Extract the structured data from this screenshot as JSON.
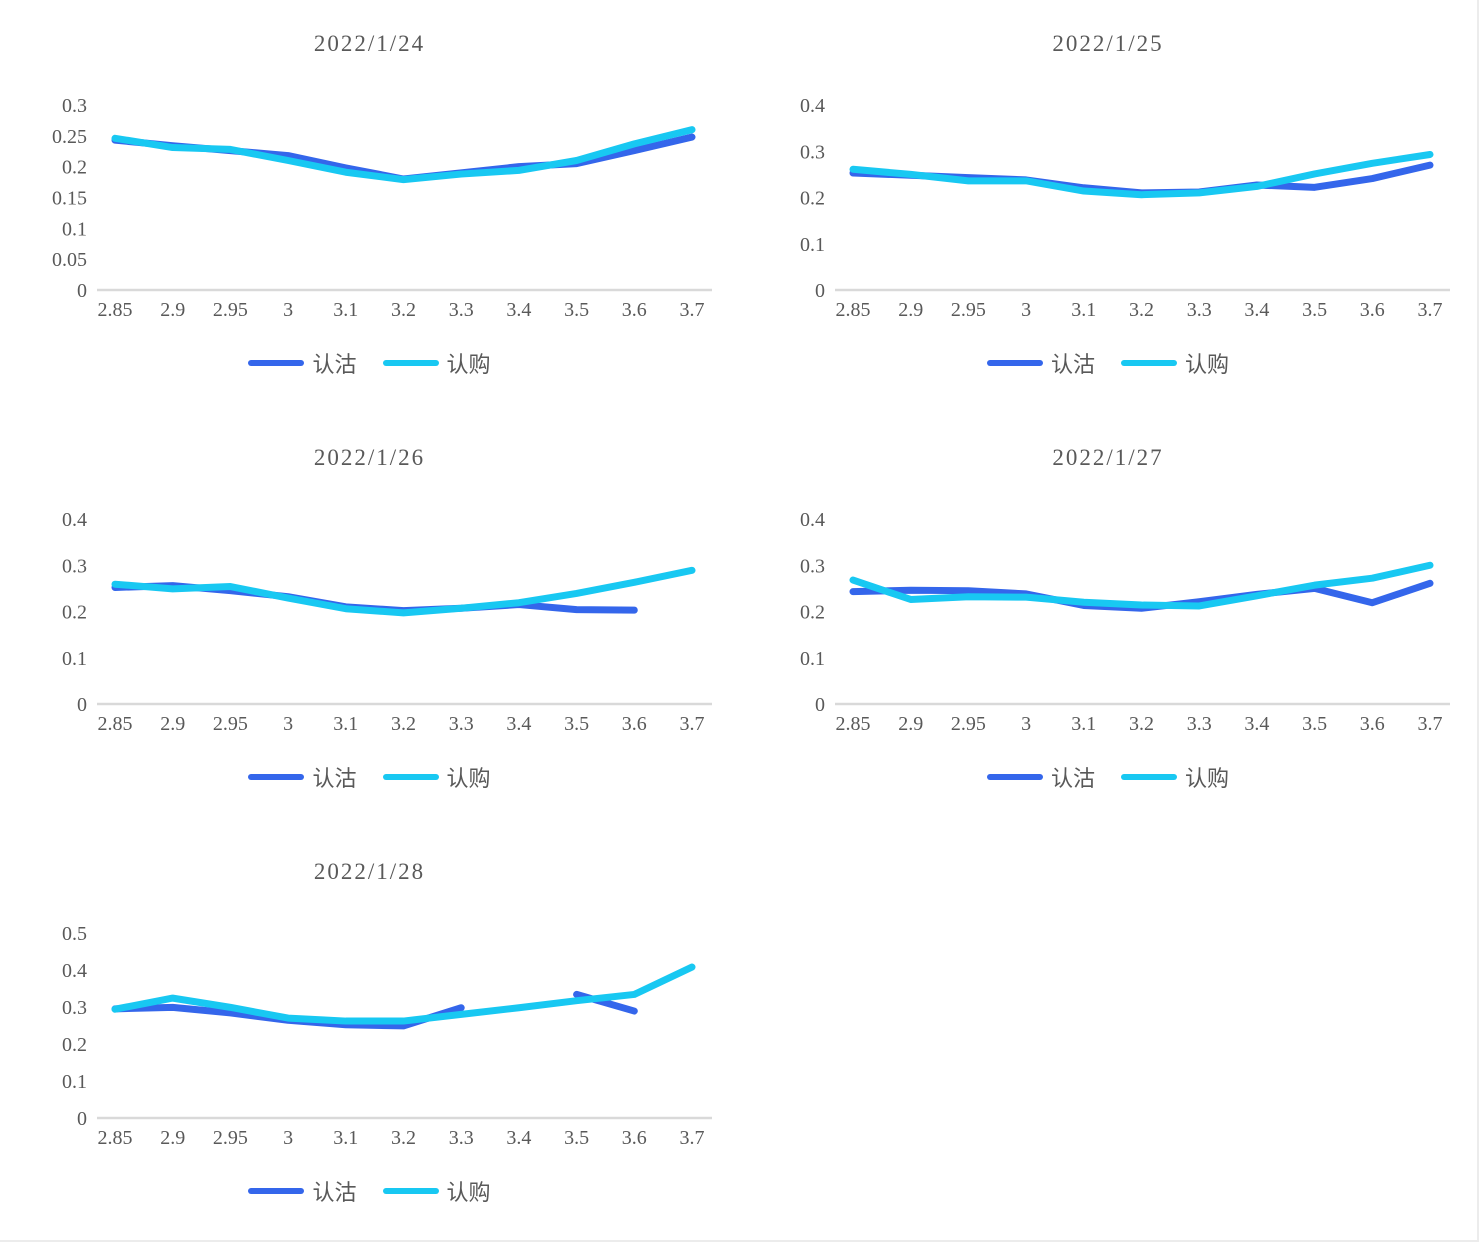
{
  "colors": {
    "put_line": "#3466EB",
    "call_line": "#18C8F2",
    "axis_line": "#d9d9d9",
    "axis_text": "#595959",
    "title_text": "#595959"
  },
  "chart_data": [
    {
      "type": "line",
      "title": "2022/1/24",
      "x": [
        "2.85",
        "2.9",
        "2.95",
        "3",
        "3.1",
        "3.2",
        "3.3",
        "3.4",
        "3.5",
        "3.6",
        "3.7"
      ],
      "xlabel": "",
      "ylabel": "",
      "ylim": [
        0,
        0.3
      ],
      "yticks": [
        "0",
        "0.05",
        "0.1",
        "0.15",
        "0.2",
        "0.25",
        "0.3"
      ],
      "grid": false,
      "legend_position": "bottom",
      "series": [
        {
          "name": "认沽",
          "color": "#3466EB",
          "values": [
            0.243,
            0.234,
            0.226,
            0.218,
            0.198,
            0.18,
            0.19,
            0.2,
            0.205,
            0.226,
            0.248
          ]
        },
        {
          "name": "认购",
          "color": "#18C8F2",
          "values": [
            0.246,
            0.231,
            0.228,
            0.21,
            0.191,
            0.179,
            0.188,
            0.194,
            0.21,
            0.237,
            0.26
          ]
        }
      ]
    },
    {
      "type": "line",
      "title": "2022/1/25",
      "x": [
        "2.85",
        "2.9",
        "2.95",
        "3",
        "3.1",
        "3.2",
        "3.3",
        "3.4",
        "3.5",
        "3.6",
        "3.7"
      ],
      "xlabel": "",
      "ylabel": "",
      "ylim": [
        0,
        0.4
      ],
      "yticks": [
        "0",
        "0.1",
        "0.2",
        "0.3",
        "0.4"
      ],
      "grid": false,
      "legend_position": "bottom",
      "series": [
        {
          "name": "认沽",
          "color": "#3466EB",
          "values": [
            0.253,
            0.248,
            0.243,
            0.238,
            0.221,
            0.21,
            0.212,
            0.227,
            0.222,
            0.241,
            0.27
          ]
        },
        {
          "name": "认购",
          "color": "#18C8F2",
          "values": [
            0.261,
            0.25,
            0.236,
            0.236,
            0.214,
            0.206,
            0.21,
            0.224,
            0.251,
            0.274,
            0.293
          ]
        }
      ]
    },
    {
      "type": "line",
      "title": "2022/1/26",
      "x": [
        "2.85",
        "2.9",
        "2.95",
        "3",
        "3.1",
        "3.2",
        "3.3",
        "3.4",
        "3.5",
        "3.6",
        "3.7"
      ],
      "xlabel": "",
      "ylabel": "",
      "ylim": [
        0,
        0.4
      ],
      "yticks": [
        "0",
        "0.1",
        "0.2",
        "0.3",
        "0.4"
      ],
      "grid": false,
      "legend_position": "bottom",
      "series": [
        {
          "name": "认沽",
          "color": "#3466EB",
          "values": [
            0.252,
            0.256,
            0.245,
            0.232,
            0.21,
            0.202,
            0.207,
            0.215,
            0.204,
            0.203,
            null
          ]
        },
        {
          "name": "认购",
          "color": "#18C8F2",
          "values": [
            0.259,
            0.249,
            0.254,
            0.229,
            0.206,
            0.197,
            0.207,
            0.219,
            0.239,
            0.263,
            0.289
          ]
        }
      ]
    },
    {
      "type": "line",
      "title": "2022/1/27",
      "x": [
        "2.85",
        "2.9",
        "2.95",
        "3",
        "3.1",
        "3.2",
        "3.3",
        "3.4",
        "3.5",
        "3.6",
        "3.7"
      ],
      "xlabel": "",
      "ylabel": "",
      "ylim": [
        0,
        0.4
      ],
      "yticks": [
        "0",
        "0.1",
        "0.2",
        "0.3",
        "0.4"
      ],
      "grid": false,
      "legend_position": "bottom",
      "series": [
        {
          "name": "认沽",
          "color": "#3466EB",
          "values": [
            0.243,
            0.246,
            0.245,
            0.238,
            0.213,
            0.207,
            0.221,
            0.237,
            0.25,
            0.219,
            0.261
          ]
        },
        {
          "name": "认购",
          "color": "#18C8F2",
          "values": [
            0.268,
            0.226,
            0.232,
            0.231,
            0.22,
            0.214,
            0.212,
            0.234,
            0.257,
            0.272,
            0.3
          ]
        }
      ]
    },
    {
      "type": "line",
      "title": "2022/1/28",
      "x": [
        "2.85",
        "2.9",
        "2.95",
        "3",
        "3.1",
        "3.2",
        "3.3",
        "3.4",
        "3.5",
        "3.6",
        "3.7"
      ],
      "xlabel": "",
      "ylabel": "",
      "ylim": [
        0,
        0.5
      ],
      "yticks": [
        "0",
        "0.1",
        "0.2",
        "0.3",
        "0.4",
        "0.5"
      ],
      "grid": false,
      "legend_position": "bottom",
      "series": [
        {
          "name": "认沽",
          "color": "#3466EB",
          "values": [
            0.295,
            0.299,
            0.284,
            0.264,
            0.252,
            0.249,
            0.298,
            null,
            0.334,
            0.289,
            null
          ]
        },
        {
          "name": "认购",
          "color": "#18C8F2",
          "values": [
            0.294,
            0.324,
            0.299,
            0.27,
            0.262,
            0.262,
            0.28,
            0.298,
            0.317,
            0.334,
            0.408
          ]
        }
      ]
    }
  ]
}
